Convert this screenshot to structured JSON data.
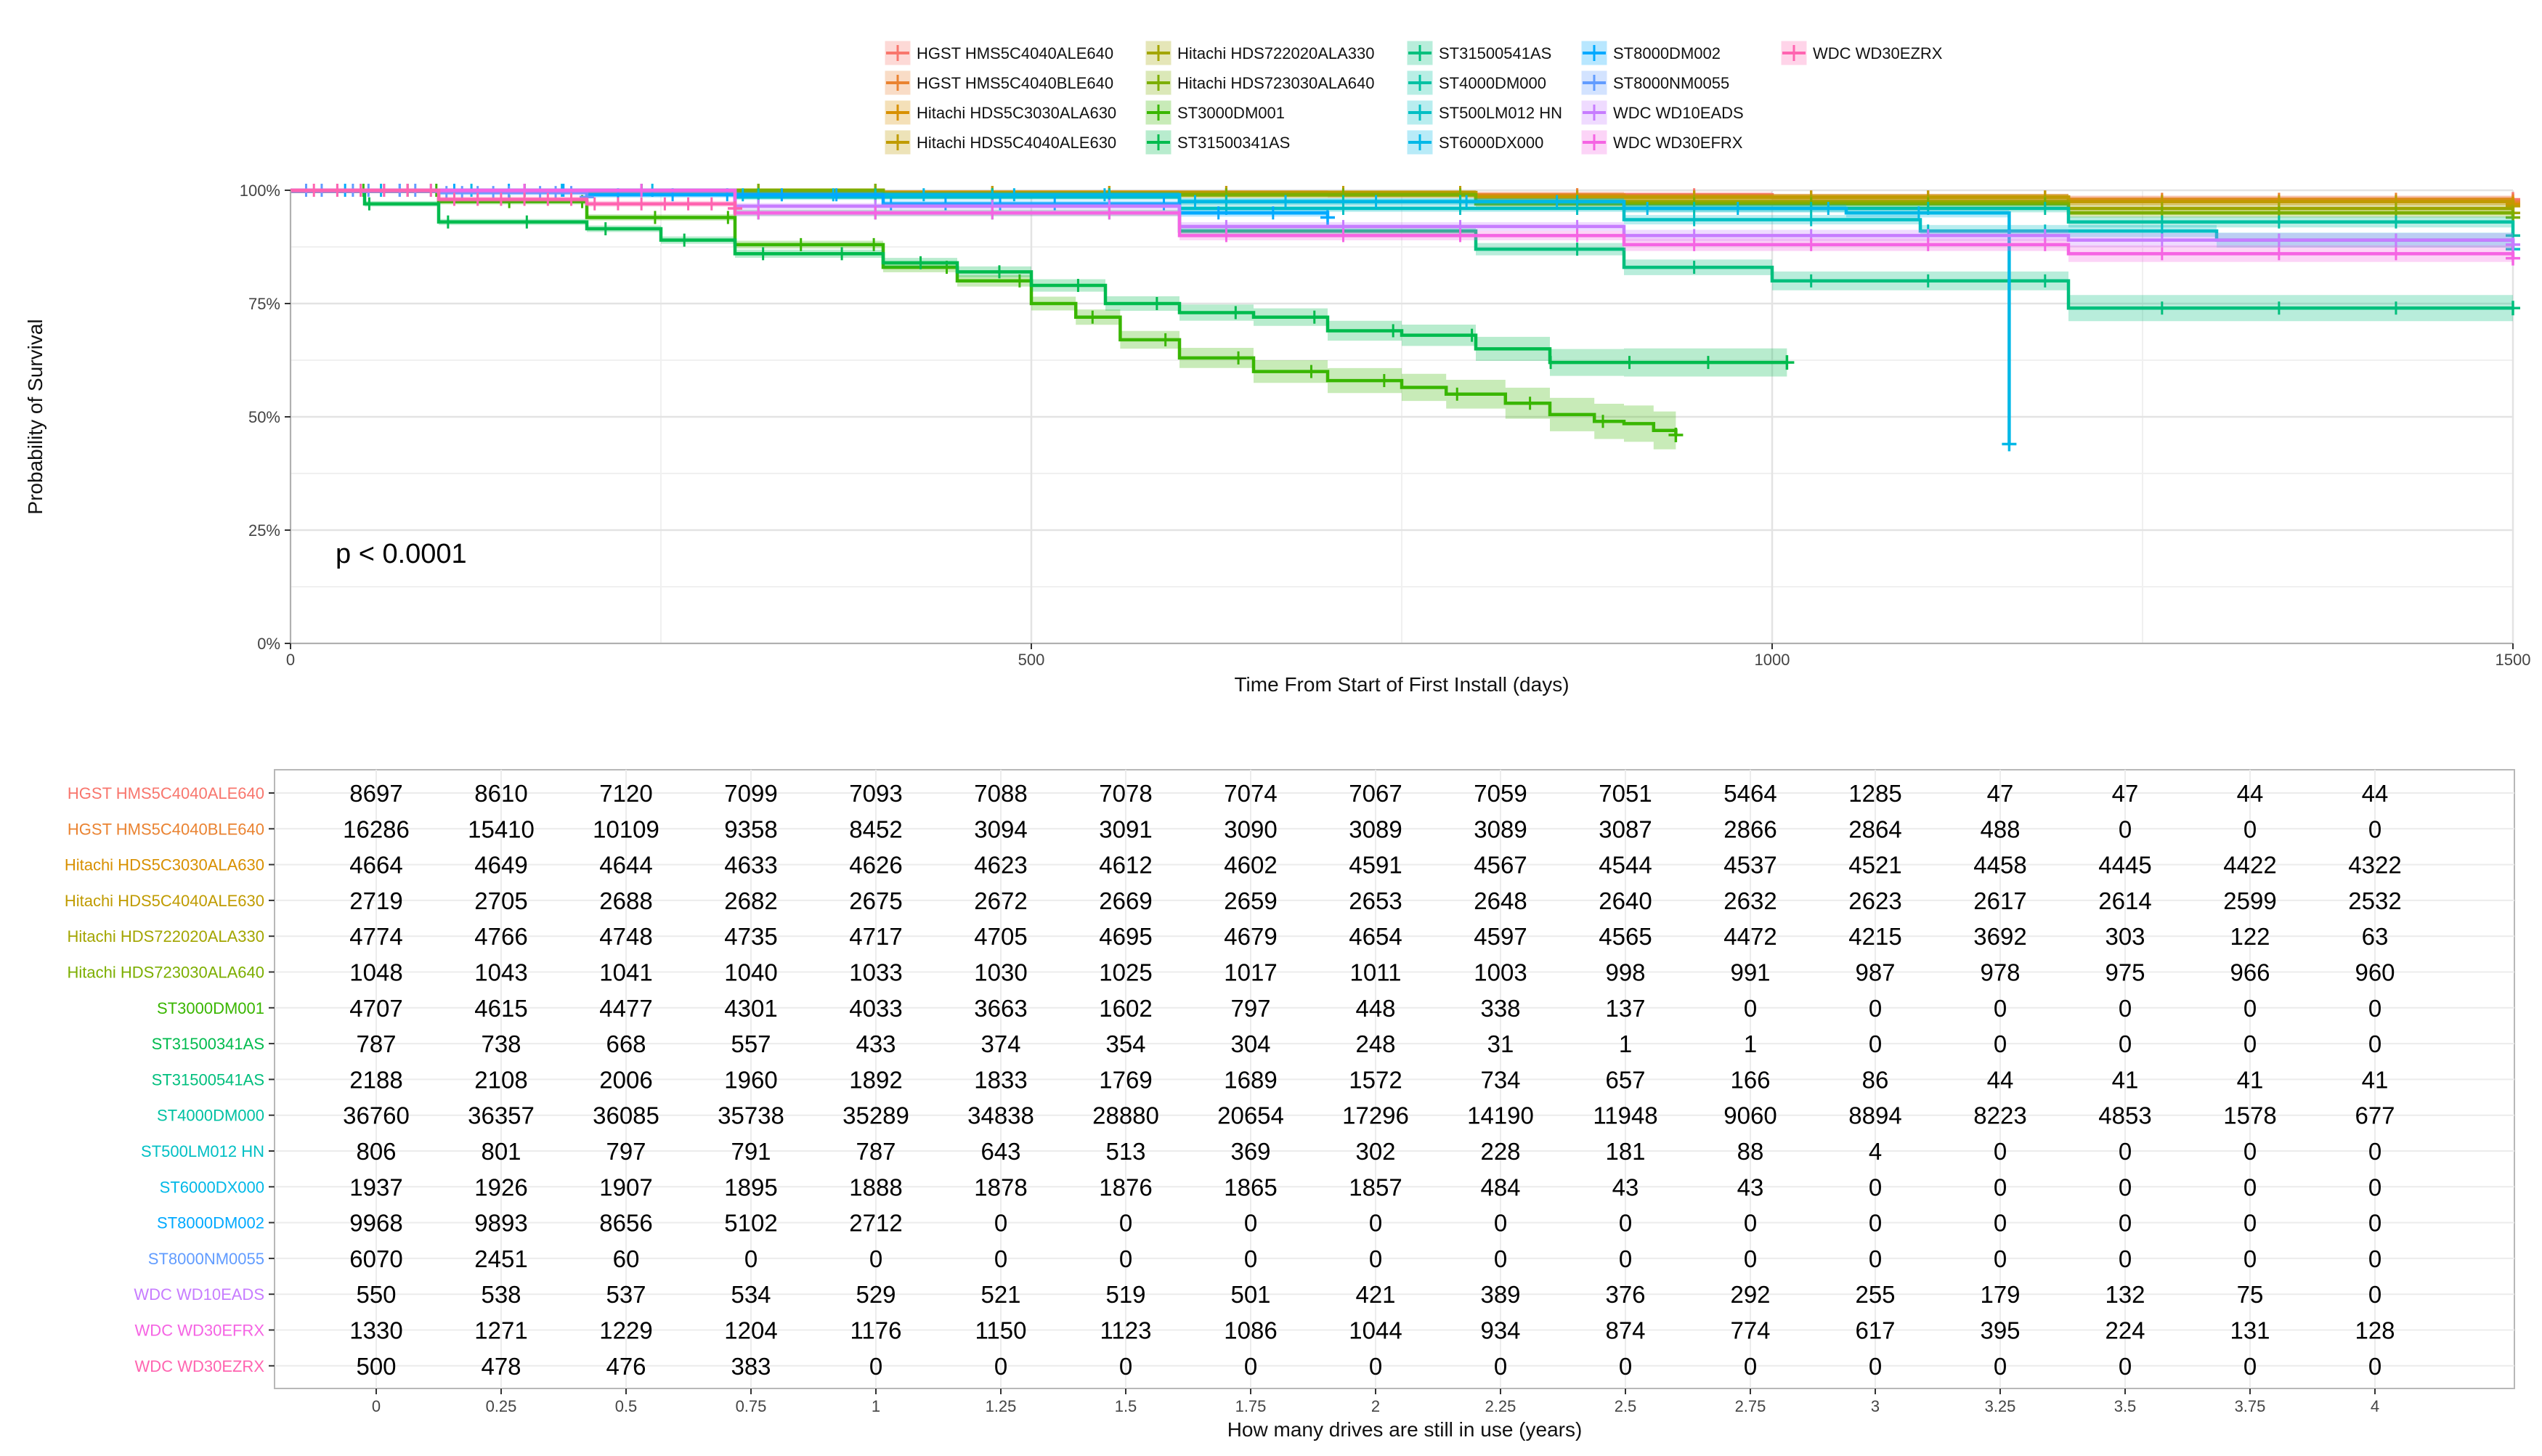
{
  "chart_data": [
    {
      "type": "line",
      "subtype": "kaplan-meier survival curves",
      "title": "",
      "xlabel": "Time From Start of First Install (days)",
      "ylabel": "Probability of Survival",
      "xlim": [
        0,
        1500
      ],
      "ylim": [
        0,
        1
      ],
      "x_ticks": [
        "0",
        "500",
        "1000",
        "1500"
      ],
      "y_ticks": [
        "0%",
        "25%",
        "50%",
        "75%",
        "100%"
      ],
      "grid": true,
      "legend_position": "top",
      "annotation": "p < 0.0001",
      "series": [
        {
          "name": "HGST HMS5C4040ALE640",
          "color": "#F8766D",
          "points": [
            [
              0,
              1
            ],
            [
              300,
              0.995
            ],
            [
              700,
              0.99
            ],
            [
              1000,
              0.985
            ],
            [
              1200,
              0.98
            ],
            [
              1500,
              0.98
            ]
          ]
        },
        {
          "name": "HGST HMS5C4040BLE640",
          "color": "#EA8331",
          "points": [
            [
              0,
              1
            ],
            [
              300,
              0.995
            ],
            [
              600,
              0.99
            ],
            [
              900,
              0.985
            ],
            [
              1200,
              0.98
            ],
            [
              1500,
              0.975
            ]
          ]
        },
        {
          "name": "Hitachi HDS5C3030ALA630",
          "color": "#D89000",
          "points": [
            [
              0,
              1
            ],
            [
              400,
              0.995
            ],
            [
              800,
              0.985
            ],
            [
              1200,
              0.975
            ],
            [
              1500,
              0.97
            ]
          ]
        },
        {
          "name": "Hitachi HDS5C4040ALE630",
          "color": "#C09B00",
          "points": [
            [
              0,
              1
            ],
            [
              400,
              0.995
            ],
            [
              800,
              0.985
            ],
            [
              1200,
              0.975
            ],
            [
              1500,
              0.965
            ]
          ]
        },
        {
          "name": "Hitachi HDS722020ALA330",
          "color": "#A3A500",
          "points": [
            [
              0,
              1
            ],
            [
              400,
              0.99
            ],
            [
              800,
              0.975
            ],
            [
              1200,
              0.96
            ],
            [
              1500,
              0.95
            ]
          ]
        },
        {
          "name": "Hitachi HDS723030ALA640",
          "color": "#7CAE00",
          "points": [
            [
              0,
              1
            ],
            [
              400,
              0.99
            ],
            [
              800,
              0.97
            ],
            [
              1200,
              0.95
            ],
            [
              1500,
              0.94
            ]
          ]
        },
        {
          "name": "ST3000DM001",
          "color": "#39B600",
          "points": [
            [
              0,
              1
            ],
            [
              100,
              0.975
            ],
            [
              200,
              0.94
            ],
            [
              300,
              0.88
            ],
            [
              400,
              0.83
            ],
            [
              450,
              0.8
            ],
            [
              500,
              0.75
            ],
            [
              530,
              0.72
            ],
            [
              560,
              0.67
            ],
            [
              600,
              0.63
            ],
            [
              650,
              0.6
            ],
            [
              700,
              0.58
            ],
            [
              750,
              0.565
            ],
            [
              780,
              0.55
            ],
            [
              820,
              0.53
            ],
            [
              850,
              0.505
            ],
            [
              880,
              0.49
            ],
            [
              900,
              0.485
            ],
            [
              920,
              0.47
            ],
            [
              935,
              0.46
            ]
          ]
        },
        {
          "name": "ST31500341AS",
          "color": "#00BB4E",
          "points": [
            [
              0,
              1
            ],
            [
              50,
              0.97
            ],
            [
              100,
              0.93
            ],
            [
              200,
              0.915
            ],
            [
              250,
              0.89
            ],
            [
              300,
              0.86
            ],
            [
              400,
              0.84
            ],
            [
              450,
              0.82
            ],
            [
              500,
              0.79
            ],
            [
              550,
              0.75
            ],
            [
              600,
              0.73
            ],
            [
              650,
              0.72
            ],
            [
              700,
              0.69
            ],
            [
              750,
              0.68
            ],
            [
              800,
              0.65
            ],
            [
              850,
              0.62
            ],
            [
              900,
              0.62
            ],
            [
              1010,
              0.62
            ]
          ]
        },
        {
          "name": "ST31500541AS",
          "color": "#00BF7D",
          "points": [
            [
              0,
              1
            ],
            [
              300,
              0.95
            ],
            [
              600,
              0.91
            ],
            [
              800,
              0.87
            ],
            [
              900,
              0.83
            ],
            [
              1000,
              0.8
            ],
            [
              1200,
              0.79
            ],
            [
              1200,
              0.74
            ],
            [
              1500,
              0.74
            ]
          ]
        },
        {
          "name": "ST4000DM000",
          "color": "#00C1A3",
          "points": [
            [
              0,
              1
            ],
            [
              300,
              0.99
            ],
            [
              600,
              0.975
            ],
            [
              900,
              0.96
            ],
            [
              1200,
              0.93
            ],
            [
              1500,
              0.9
            ]
          ]
        },
        {
          "name": "ST500LM012 HN",
          "color": "#00BFC4",
          "points": [
            [
              0,
              1
            ],
            [
              300,
              0.985
            ],
            [
              600,
              0.96
            ],
            [
              900,
              0.935
            ],
            [
              1100,
              0.91
            ],
            [
              1300,
              0.89
            ],
            [
              1500,
              0.87
            ]
          ]
        },
        {
          "name": "ST6000DX000",
          "color": "#00B8E7",
          "points": [
            [
              0,
              1
            ],
            [
              300,
              0.99
            ],
            [
              600,
              0.975
            ],
            [
              900,
              0.96
            ],
            [
              1050,
              0.95
            ],
            [
              1160,
              0.945
            ],
            [
              1160,
              0.44
            ]
          ]
        },
        {
          "name": "ST8000DM002",
          "color": "#00A9FF",
          "points": [
            [
              0,
              1
            ],
            [
              200,
              0.99
            ],
            [
              400,
              0.97
            ],
            [
              600,
              0.95
            ],
            [
              700,
              0.94
            ]
          ]
        },
        {
          "name": "ST8000NM0055",
          "color": "#619CFF",
          "points": [
            [
              0,
              1
            ],
            [
              100,
              0.995
            ],
            [
              200,
              0.985
            ]
          ]
        },
        {
          "name": "WDC WD10EADS",
          "color": "#C77CFF",
          "points": [
            [
              0,
              1
            ],
            [
              300,
              0.965
            ],
            [
              600,
              0.92
            ],
            [
              900,
              0.9
            ],
            [
              1200,
              0.89
            ],
            [
              1500,
              0.88
            ]
          ]
        },
        {
          "name": "WDC WD30EFRX",
          "color": "#F564E3",
          "points": [
            [
              0,
              1
            ],
            [
              300,
              0.95
            ],
            [
              600,
              0.9
            ],
            [
              900,
              0.88
            ],
            [
              1200,
              0.86
            ],
            [
              1500,
              0.85
            ]
          ]
        },
        {
          "name": "WDC WD30EZRX",
          "color": "#FF64B0",
          "points": [
            [
              0,
              1
            ],
            [
              100,
              0.98
            ],
            [
              200,
              0.97
            ],
            [
              300,
              0.96
            ]
          ]
        }
      ]
    },
    {
      "type": "table",
      "title": "",
      "xlabel": "How many drives are still in use (years)",
      "columns": [
        "0",
        "0.25",
        "0.5",
        "0.75",
        "1",
        "1.25",
        "1.5",
        "1.75",
        "2",
        "2.25",
        "2.5",
        "2.75",
        "3",
        "3.25",
        "3.5",
        "3.75",
        "4"
      ],
      "rows": [
        {
          "name": "HGST HMS5C4040ALE640",
          "color": "#F8766D",
          "values": [
            8697,
            8610,
            7120,
            7099,
            7093,
            7088,
            7078,
            7074,
            7067,
            7059,
            7051,
            5464,
            1285,
            47,
            47,
            44,
            44
          ]
        },
        {
          "name": "HGST HMS5C4040BLE640",
          "color": "#EA8331",
          "values": [
            16286,
            15410,
            10109,
            9358,
            8452,
            3094,
            3091,
            3090,
            3089,
            3089,
            3087,
            2866,
            2864,
            488,
            0,
            0,
            0
          ]
        },
        {
          "name": "Hitachi HDS5C3030ALA630",
          "color": "#D89000",
          "values": [
            4664,
            4649,
            4644,
            4633,
            4626,
            4623,
            4612,
            4602,
            4591,
            4567,
            4544,
            4537,
            4521,
            4458,
            4445,
            4422,
            4322
          ]
        },
        {
          "name": "Hitachi HDS5C4040ALE630",
          "color": "#C09B00",
          "values": [
            2719,
            2705,
            2688,
            2682,
            2675,
            2672,
            2669,
            2659,
            2653,
            2648,
            2640,
            2632,
            2623,
            2617,
            2614,
            2599,
            2532
          ]
        },
        {
          "name": "Hitachi HDS722020ALA330",
          "color": "#A3A500",
          "values": [
            4774,
            4766,
            4748,
            4735,
            4717,
            4705,
            4695,
            4679,
            4654,
            4597,
            4565,
            4472,
            4215,
            3692,
            303,
            122,
            63
          ]
        },
        {
          "name": "Hitachi HDS723030ALA640",
          "color": "#7CAE00",
          "values": [
            1048,
            1043,
            1041,
            1040,
            1033,
            1030,
            1025,
            1017,
            1011,
            1003,
            998,
            991,
            987,
            978,
            975,
            966,
            960
          ]
        },
        {
          "name": "ST3000DM001",
          "color": "#39B600",
          "values": [
            4707,
            4615,
            4477,
            4301,
            4033,
            3663,
            1602,
            797,
            448,
            338,
            137,
            0,
            0,
            0,
            0,
            0,
            0
          ]
        },
        {
          "name": "ST31500341AS",
          "color": "#00BB4E",
          "values": [
            787,
            738,
            668,
            557,
            433,
            374,
            354,
            304,
            248,
            31,
            1,
            1,
            0,
            0,
            0,
            0,
            0
          ]
        },
        {
          "name": "ST31500541AS",
          "color": "#00BF7D",
          "values": [
            2188,
            2108,
            2006,
            1960,
            1892,
            1833,
            1769,
            1689,
            1572,
            734,
            657,
            166,
            86,
            44,
            41,
            41,
            41
          ]
        },
        {
          "name": "ST4000DM000",
          "color": "#00C1A3",
          "values": [
            36760,
            36357,
            36085,
            35738,
            35289,
            34838,
            28880,
            20654,
            17296,
            14190,
            11948,
            9060,
            8894,
            8223,
            4853,
            1578,
            677
          ]
        },
        {
          "name": "ST500LM012 HN",
          "color": "#00BFC4",
          "values": [
            806,
            801,
            797,
            791,
            787,
            643,
            513,
            369,
            302,
            228,
            181,
            88,
            4,
            0,
            0,
            0,
            0
          ]
        },
        {
          "name": "ST6000DX000",
          "color": "#00B8E7",
          "values": [
            1937,
            1926,
            1907,
            1895,
            1888,
            1878,
            1876,
            1865,
            1857,
            484,
            43,
            43,
            0,
            0,
            0,
            0,
            0
          ]
        },
        {
          "name": "ST8000DM002",
          "color": "#00A9FF",
          "values": [
            9968,
            9893,
            8656,
            5102,
            2712,
            0,
            0,
            0,
            0,
            0,
            0,
            0,
            0,
            0,
            0,
            0,
            0
          ]
        },
        {
          "name": "ST8000NM0055",
          "color": "#619CFF",
          "values": [
            6070,
            2451,
            60,
            0,
            0,
            0,
            0,
            0,
            0,
            0,
            0,
            0,
            0,
            0,
            0,
            0,
            0
          ]
        },
        {
          "name": "WDC WD10EADS",
          "color": "#C77CFF",
          "values": [
            550,
            538,
            537,
            534,
            529,
            521,
            519,
            501,
            421,
            389,
            376,
            292,
            255,
            179,
            132,
            75,
            0
          ]
        },
        {
          "name": "WDC WD30EFRX",
          "color": "#F564E3",
          "values": [
            1330,
            1271,
            1229,
            1204,
            1176,
            1150,
            1123,
            1086,
            1044,
            934,
            874,
            774,
            617,
            395,
            224,
            131,
            128
          ]
        },
        {
          "name": "WDC WD30EZRX",
          "color": "#FF64B0",
          "values": [
            500,
            478,
            476,
            383,
            0,
            0,
            0,
            0,
            0,
            0,
            0,
            0,
            0,
            0,
            0,
            0,
            0
          ]
        }
      ]
    }
  ]
}
